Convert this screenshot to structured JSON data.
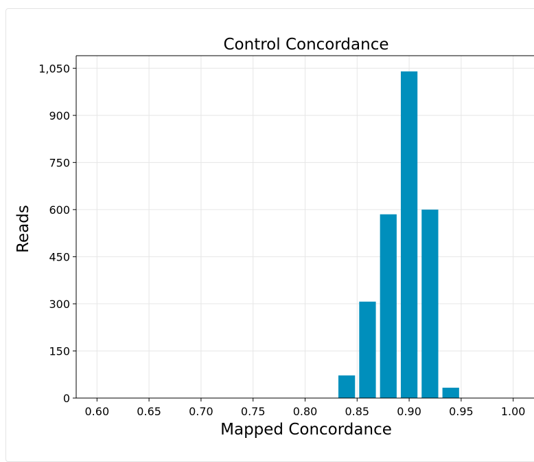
{
  "chart_data": {
    "type": "bar",
    "title": "Control Concordance",
    "xlabel": "Mapped Concordance",
    "ylabel": "Reads",
    "xlim": [
      0.58,
      1.02
    ],
    "ylim": [
      0,
      1090
    ],
    "xticks": [
      "0.60",
      "0.65",
      "0.70",
      "0.75",
      "0.80",
      "0.85",
      "0.90",
      "0.95",
      "1.00"
    ],
    "yticks": [
      "0",
      "150",
      "300",
      "450",
      "600",
      "750",
      "900",
      "1,050"
    ],
    "bar_width": 0.016,
    "x": [
      0.84,
      0.86,
      0.88,
      0.9,
      0.92,
      0.94
    ],
    "values": [
      72,
      307,
      585,
      1040,
      600,
      33
    ],
    "bar_color": "#008fbc",
    "grid": true
  }
}
